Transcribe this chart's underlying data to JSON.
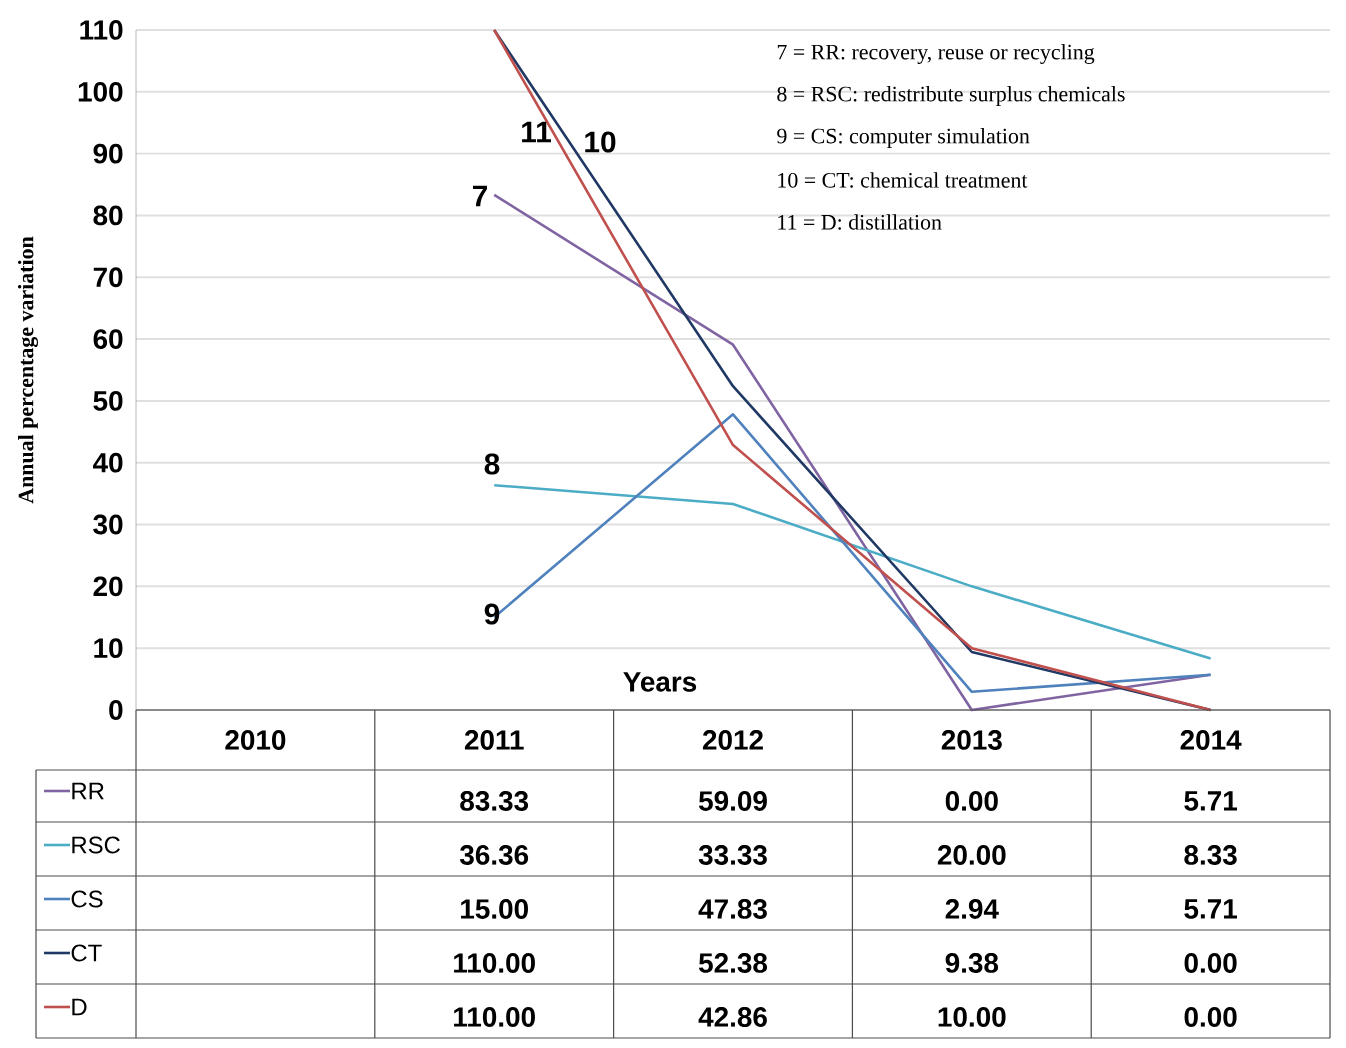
{
  "chart_data": {
    "type": "line",
    "xlabel": "Years",
    "ylabel": "Annual percentage variation",
    "categories": [
      "2010",
      "2011",
      "2012",
      "2013",
      "2014"
    ],
    "ylim": [
      0,
      110
    ],
    "yticks": [
      0,
      10,
      20,
      30,
      40,
      50,
      60,
      70,
      80,
      90,
      100,
      110
    ],
    "grid": "y",
    "line_style": "solid",
    "legend": "bottom",
    "series": [
      {
        "name": "RR",
        "color": "#8064a2",
        "values": [
          null,
          83.33,
          59.09,
          0.0,
          5.71
        ],
        "value_labels": [
          null,
          "83.33",
          "59.09",
          "0.00",
          "5.71"
        ]
      },
      {
        "name": "RSC",
        "color": "#4bacc6",
        "values": [
          null,
          36.36,
          33.33,
          20.0,
          8.33
        ],
        "value_labels": [
          null,
          "36.36",
          "33.33",
          "20.00",
          "8.33"
        ]
      },
      {
        "name": "CS",
        "color": "#4f81bd",
        "values": [
          null,
          15.0,
          47.83,
          2.94,
          5.71
        ],
        "value_labels": [
          null,
          "15.00",
          "47.83",
          "2.94",
          "5.71"
        ]
      },
      {
        "name": "CT",
        "color": "#1f3864",
        "values": [
          null,
          110.0,
          52.38,
          9.38,
          0.0
        ],
        "value_labels": [
          null,
          "110.00",
          "52.38",
          "9.38",
          "0.00"
        ]
      },
      {
        "name": "D",
        "color": "#c0504d",
        "values": [
          null,
          110.0,
          42.86,
          10.0,
          0.0
        ],
        "value_labels": [
          null,
          "110.00",
          "42.86",
          "10.00",
          "0.00"
        ]
      }
    ],
    "annotations": [
      "7 = RR: recovery, reuse or recycling",
      "8 = RSC: redistribute surplus chemicals",
      "9 = CS: computer simulation",
      "10 = CT: chemical  treatment",
      "11 = D: distillation",
      "7",
      "8",
      "9",
      "11",
      "10"
    ]
  }
}
